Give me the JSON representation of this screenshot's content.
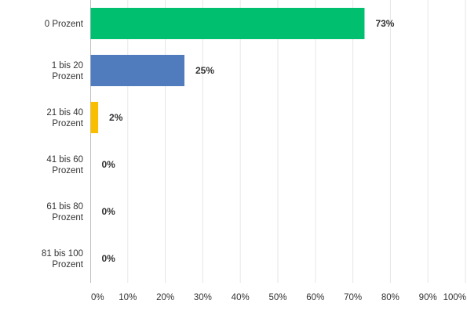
{
  "chart_data": {
    "type": "bar",
    "orientation": "horizontal",
    "categories": [
      "0 Prozent",
      "1 bis 20 Prozent",
      "21 bis 40 Prozent",
      "41 bis 60 Prozent",
      "61 bis 80 Prozent",
      "81 bis 100 Prozent"
    ],
    "values": [
      73,
      25,
      2,
      0,
      0,
      0
    ],
    "value_labels": [
      "73%",
      "25%",
      "2%",
      "0%",
      "0%",
      "0%"
    ],
    "bar_colors": [
      "#00BF6F",
      "#507CBE",
      "#F9BE00",
      "#6BC8CD",
      "#FF8B4F",
      "#7D5BA6"
    ],
    "xlim": [
      0,
      100
    ],
    "xticks": [
      0,
      10,
      20,
      30,
      40,
      50,
      60,
      70,
      80,
      90,
      100
    ],
    "xtick_labels": [
      "0%",
      "10%",
      "20%",
      "30%",
      "40%",
      "50%",
      "60%",
      "70%",
      "80%",
      "90%",
      "100%"
    ],
    "grid": true,
    "title": "",
    "xlabel": "",
    "ylabel": ""
  }
}
